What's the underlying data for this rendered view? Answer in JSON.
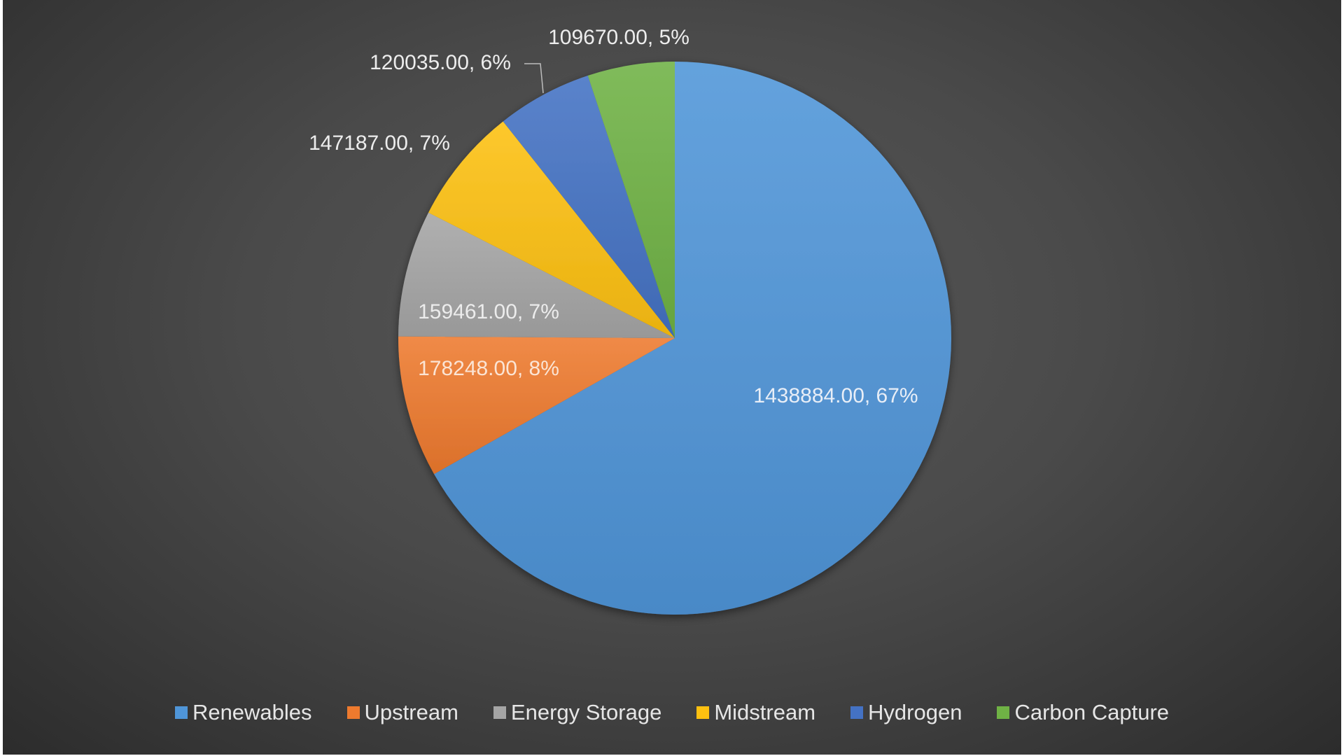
{
  "chart_data": {
    "type": "pie",
    "title": "",
    "categories": [
      "Renewables",
      "Upstream",
      "Energy Storage",
      "Midstream",
      "Hydrogen",
      "Carbon Capture"
    ],
    "values": [
      1438884,
      178248,
      159461,
      147187,
      120035,
      109670
    ],
    "data_labels": [
      "1438884.00, 67%",
      "178248.00, 8%",
      "159461.00, 7%",
      "147187.00, 7%",
      "120035.00, 6%",
      "109670.00, 5%"
    ],
    "colors": [
      "#4F95D8",
      "#EE7A2E",
      "#A5A5A5",
      "#FDC010",
      "#4472C4",
      "#6FB245"
    ],
    "start_angle": "12 o'clock",
    "direction": "clockwise",
    "legend_position": "bottom"
  },
  "legend": {
    "items": [
      {
        "label": "Renewables",
        "color": "#4F95D8"
      },
      {
        "label": "Upstream",
        "color": "#EE7A2E"
      },
      {
        "label": "Energy Storage",
        "color": "#A5A5A5"
      },
      {
        "label": "Midstream",
        "color": "#FDC010"
      },
      {
        "label": "Hydrogen",
        "color": "#4472C4"
      },
      {
        "label": "Carbon Capture",
        "color": "#6FB245"
      }
    ]
  }
}
